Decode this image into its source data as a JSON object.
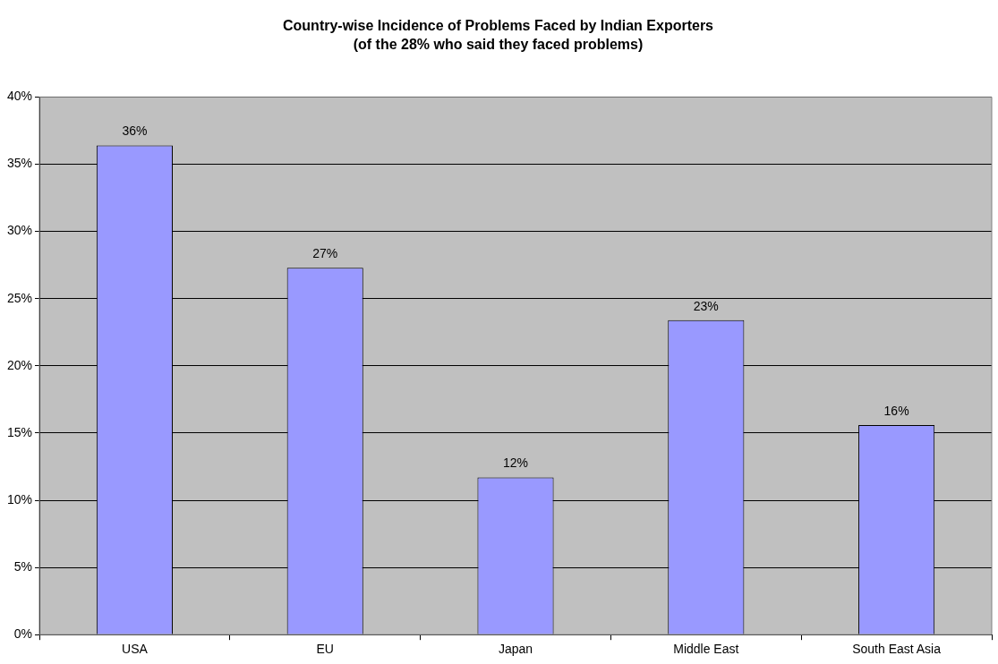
{
  "chart_data": {
    "type": "bar",
    "title": "Country-wise Incidence of Problems Faced by Indian Exporters",
    "subtitle": "(of the 28% who said they faced problems)",
    "categories": [
      "USA",
      "EU",
      "Japan",
      "Middle East",
      "South East Asia"
    ],
    "values": [
      36.4,
      27.3,
      11.7,
      23.4,
      15.6
    ],
    "value_labels": [
      "36%",
      "27%",
      "12%",
      "23%",
      "16%"
    ],
    "color": "#9999ff",
    "ylim": [
      0,
      40
    ],
    "yticks": [
      {
        "value": 0,
        "label": "0%"
      },
      {
        "value": 5,
        "label": "5%"
      },
      {
        "value": 10,
        "label": "10%"
      },
      {
        "value": 15,
        "label": "15%"
      },
      {
        "value": 20,
        "label": "20%"
      },
      {
        "value": 25,
        "label": "25%"
      },
      {
        "value": 30,
        "label": "30%"
      },
      {
        "value": 35,
        "label": "35%"
      },
      {
        "value": 40,
        "label": "40%"
      }
    ],
    "grid": "y",
    "legend": false
  }
}
